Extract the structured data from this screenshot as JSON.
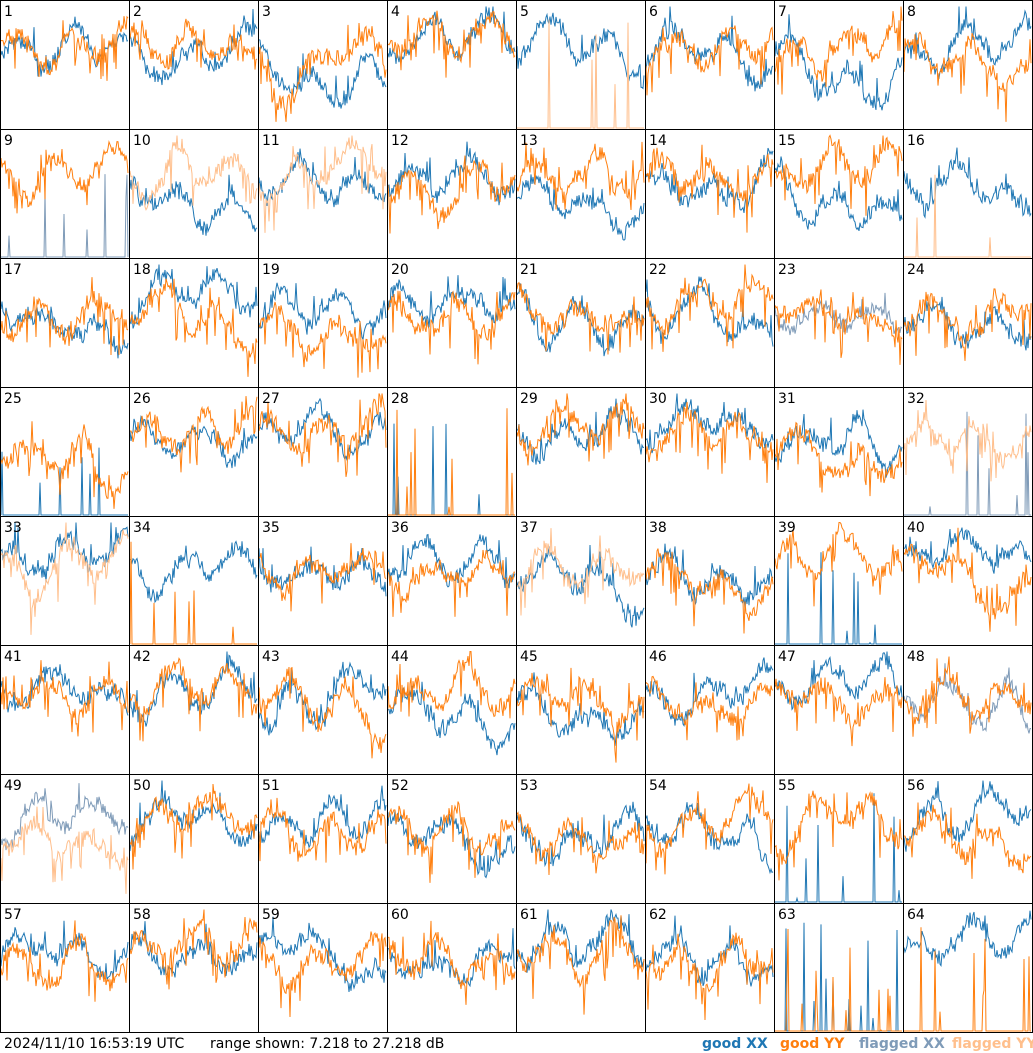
{
  "panels": [
    {
      "label": "1",
      "xx": "good",
      "yy": "good"
    },
    {
      "label": "2",
      "xx": "good",
      "yy": "good"
    },
    {
      "label": "3",
      "xx": "good",
      "yy": "good"
    },
    {
      "label": "4",
      "xx": "good",
      "yy": "good"
    },
    {
      "label": "5",
      "xx": "good",
      "yy": "flagged-dead"
    },
    {
      "label": "6",
      "xx": "good",
      "yy": "good"
    },
    {
      "label": "7",
      "xx": "good",
      "yy": "good"
    },
    {
      "label": "8",
      "xx": "good",
      "yy": "good"
    },
    {
      "label": "9",
      "xx": "flagged-dead",
      "yy": "good"
    },
    {
      "label": "10",
      "xx": "good",
      "yy": "flagged"
    },
    {
      "label": "11",
      "xx": "good",
      "yy": "flagged"
    },
    {
      "label": "12",
      "xx": "good",
      "yy": "good"
    },
    {
      "label": "13",
      "xx": "good",
      "yy": "good"
    },
    {
      "label": "14",
      "xx": "good",
      "yy": "good"
    },
    {
      "label": "15",
      "xx": "good",
      "yy": "good"
    },
    {
      "label": "16",
      "xx": "good",
      "yy": "flagged-dead"
    },
    {
      "label": "17",
      "xx": "good",
      "yy": "good"
    },
    {
      "label": "18",
      "xx": "good",
      "yy": "good"
    },
    {
      "label": "19",
      "xx": "good",
      "yy": "good"
    },
    {
      "label": "20",
      "xx": "good",
      "yy": "good"
    },
    {
      "label": "21",
      "xx": "good",
      "yy": "good"
    },
    {
      "label": "22",
      "xx": "good",
      "yy": "good"
    },
    {
      "label": "23",
      "xx": "flagged",
      "yy": "good"
    },
    {
      "label": "24",
      "xx": "good",
      "yy": "good"
    },
    {
      "label": "25",
      "xx": "good-dead",
      "yy": "good"
    },
    {
      "label": "26",
      "xx": "good",
      "yy": "good"
    },
    {
      "label": "27",
      "xx": "good",
      "yy": "good"
    },
    {
      "label": "28",
      "xx": "good-dead",
      "yy": "good-dead"
    },
    {
      "label": "29",
      "xx": "good",
      "yy": "good"
    },
    {
      "label": "30",
      "xx": "good",
      "yy": "good"
    },
    {
      "label": "31",
      "xx": "good",
      "yy": "good"
    },
    {
      "label": "32",
      "xx": "flagged-dead",
      "yy": "flagged"
    },
    {
      "label": "33",
      "xx": "good",
      "yy": "flagged"
    },
    {
      "label": "34",
      "xx": "good",
      "yy": "good-dead"
    },
    {
      "label": "35",
      "xx": "good",
      "yy": "good"
    },
    {
      "label": "36",
      "xx": "good",
      "yy": "good"
    },
    {
      "label": "37",
      "xx": "good",
      "yy": "flagged"
    },
    {
      "label": "38",
      "xx": "good",
      "yy": "good"
    },
    {
      "label": "39",
      "xx": "good-dead",
      "yy": "good"
    },
    {
      "label": "40",
      "xx": "good",
      "yy": "good"
    },
    {
      "label": "41",
      "xx": "good",
      "yy": "good"
    },
    {
      "label": "42",
      "xx": "good",
      "yy": "good"
    },
    {
      "label": "43",
      "xx": "good",
      "yy": "good"
    },
    {
      "label": "44",
      "xx": "good",
      "yy": "good"
    },
    {
      "label": "45",
      "xx": "good",
      "yy": "good"
    },
    {
      "label": "46",
      "xx": "good",
      "yy": "good"
    },
    {
      "label": "47",
      "xx": "good",
      "yy": "good"
    },
    {
      "label": "48",
      "xx": "flagged",
      "yy": "good"
    },
    {
      "label": "49",
      "xx": "flagged",
      "yy": "flagged"
    },
    {
      "label": "50",
      "xx": "good",
      "yy": "good"
    },
    {
      "label": "51",
      "xx": "good",
      "yy": "good"
    },
    {
      "label": "52",
      "xx": "good",
      "yy": "good"
    },
    {
      "label": "53",
      "xx": "good",
      "yy": "good"
    },
    {
      "label": "54",
      "xx": "good",
      "yy": "good"
    },
    {
      "label": "55",
      "xx": "good-dead",
      "yy": "good"
    },
    {
      "label": "56",
      "xx": "good",
      "yy": "good"
    },
    {
      "label": "57",
      "xx": "good",
      "yy": "good"
    },
    {
      "label": "58",
      "xx": "good",
      "yy": "good"
    },
    {
      "label": "59",
      "xx": "good",
      "yy": "good"
    },
    {
      "label": "60",
      "xx": "good",
      "yy": "good"
    },
    {
      "label": "61",
      "xx": "good",
      "yy": "good"
    },
    {
      "label": "62",
      "xx": "good",
      "yy": "good"
    },
    {
      "label": "63",
      "xx": "good-dead",
      "yy": "good-dead"
    },
    {
      "label": "64",
      "xx": "good",
      "yy": "good-dead"
    }
  ],
  "footer": {
    "timestamp": "2024/11/10 16:53:19 UTC",
    "range": "range shown: 7.218 to 27.218 dB"
  },
  "legend": [
    {
      "name": "good XX",
      "color": "#1f77b4"
    },
    {
      "name": "good YY",
      "color": "#ff7f0e"
    },
    {
      "name": "flagged XX",
      "color": "#7f9bb8"
    },
    {
      "name": "flagged YY",
      "color": "#ffbf8c"
    }
  ]
}
